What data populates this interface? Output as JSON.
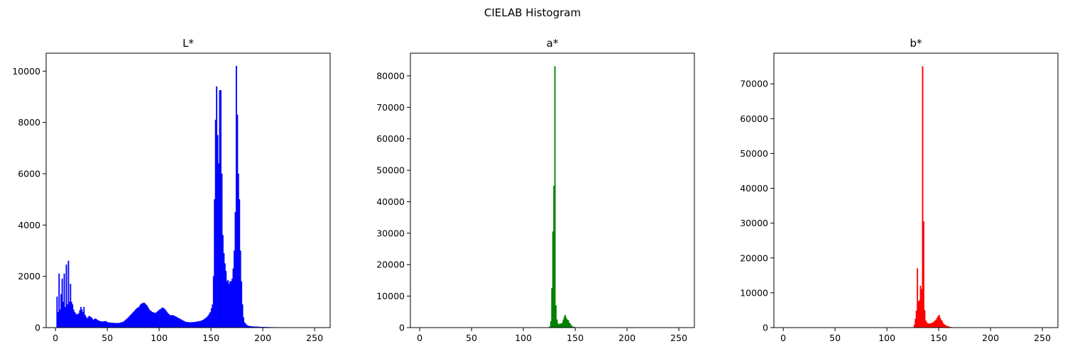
{
  "figure": {
    "suptitle": "CIELAB Histogram"
  },
  "chart_data": [
    {
      "type": "bar",
      "title": "L*",
      "color": "#0000ff",
      "xlim": [
        -9,
        265
      ],
      "ylim": [
        0,
        10700
      ],
      "xticks": [
        0,
        50,
        100,
        150,
        200,
        250
      ],
      "yticks": [
        0,
        2000,
        4000,
        6000,
        8000,
        10000
      ],
      "xlabel": "",
      "ylabel": "",
      "bins": 256,
      "anchors": [
        [
          0,
          0
        ],
        [
          1,
          1200
        ],
        [
          2,
          600
        ],
        [
          3,
          2100
        ],
        [
          4,
          700
        ],
        [
          5,
          1300
        ],
        [
          6,
          1900
        ],
        [
          7,
          1000
        ],
        [
          8,
          2100
        ],
        [
          9,
          800
        ],
        [
          10,
          2450
        ],
        [
          11,
          900
        ],
        [
          12,
          2600
        ],
        [
          13,
          1000
        ],
        [
          14,
          1700
        ],
        [
          15,
          1000
        ],
        [
          16,
          900
        ],
        [
          17,
          700
        ],
        [
          18,
          600
        ],
        [
          20,
          500
        ],
        [
          22,
          550
        ],
        [
          24,
          800
        ],
        [
          26,
          600
        ],
        [
          27,
          800
        ],
        [
          28,
          500
        ],
        [
          30,
          350
        ],
        [
          32,
          450
        ],
        [
          34,
          400
        ],
        [
          36,
          300
        ],
        [
          38,
          350
        ],
        [
          40,
          300
        ],
        [
          42,
          250
        ],
        [
          45,
          230
        ],
        [
          48,
          250
        ],
        [
          50,
          200
        ],
        [
          55,
          180
        ],
        [
          60,
          170
        ],
        [
          65,
          220
        ],
        [
          70,
          400
        ],
        [
          75,
          620
        ],
        [
          78,
          750
        ],
        [
          80,
          800
        ],
        [
          82,
          920
        ],
        [
          85,
          970
        ],
        [
          88,
          850
        ],
        [
          90,
          700
        ],
        [
          93,
          600
        ],
        [
          96,
          560
        ],
        [
          100,
          700
        ],
        [
          103,
          780
        ],
        [
          105,
          720
        ],
        [
          108,
          560
        ],
        [
          110,
          480
        ],
        [
          113,
          480
        ],
        [
          116,
          420
        ],
        [
          120,
          330
        ],
        [
          125,
          220
        ],
        [
          130,
          200
        ],
        [
          135,
          220
        ],
        [
          140,
          260
        ],
        [
          143,
          320
        ],
        [
          146,
          420
        ],
        [
          149,
          600
        ],
        [
          151,
          900
        ],
        [
          152,
          2000
        ],
        [
          153,
          5000
        ],
        [
          154,
          8100
        ],
        [
          155,
          9400
        ],
        [
          156,
          7500
        ],
        [
          157,
          6400
        ],
        [
          158,
          9250
        ],
        [
          159,
          9250
        ],
        [
          160,
          6000
        ],
        [
          161,
          3600
        ],
        [
          162,
          2900
        ],
        [
          163,
          2500
        ],
        [
          164,
          2200
        ],
        [
          165,
          1800
        ],
        [
          166,
          1850
        ],
        [
          167,
          1700
        ],
        [
          168,
          1800
        ],
        [
          169,
          1800
        ],
        [
          170,
          1900
        ],
        [
          171,
          2300
        ],
        [
          172,
          3000
        ],
        [
          173,
          4500
        ],
        [
          174,
          10200
        ],
        [
          175,
          8300
        ],
        [
          176,
          6000
        ],
        [
          177,
          5000
        ],
        [
          178,
          3000
        ],
        [
          179,
          1800
        ],
        [
          180,
          900
        ],
        [
          181,
          400
        ],
        [
          182,
          200
        ],
        [
          184,
          100
        ],
        [
          186,
          60
        ],
        [
          190,
          40
        ],
        [
          195,
          30
        ],
        [
          200,
          20
        ],
        [
          210,
          10
        ],
        [
          255,
          0
        ]
      ]
    },
    {
      "type": "bar",
      "title": "a*",
      "color": "#008000",
      "xlim": [
        -9,
        265
      ],
      "ylim": [
        0,
        87200
      ],
      "xticks": [
        0,
        50,
        100,
        150,
        200,
        250
      ],
      "yticks": [
        0,
        10000,
        20000,
        30000,
        40000,
        50000,
        60000,
        70000,
        80000
      ],
      "xlabel": "",
      "ylabel": "",
      "bins": 256,
      "anchors": [
        [
          0,
          0
        ],
        [
          124,
          0
        ],
        [
          125,
          300
        ],
        [
          126,
          2000
        ],
        [
          127,
          12500
        ],
        [
          128,
          30500
        ],
        [
          129,
          45000
        ],
        [
          130,
          83000
        ],
        [
          131,
          7000
        ],
        [
          132,
          2500
        ],
        [
          133,
          1300
        ],
        [
          134,
          1000
        ],
        [
          135,
          1300
        ],
        [
          136,
          1200
        ],
        [
          137,
          1500
        ],
        [
          138,
          2500
        ],
        [
          139,
          3500
        ],
        [
          140,
          4000
        ],
        [
          141,
          3000
        ],
        [
          142,
          2500
        ],
        [
          143,
          2300
        ],
        [
          144,
          1500
        ],
        [
          145,
          1200
        ],
        [
          146,
          600
        ],
        [
          147,
          300
        ],
        [
          149,
          100
        ],
        [
          152,
          0
        ],
        [
          255,
          0
        ]
      ]
    },
    {
      "type": "bar",
      "title": "b*",
      "color": "#ff0000",
      "xlim": [
        -9,
        265
      ],
      "ylim": [
        0,
        78800
      ],
      "xticks": [
        0,
        50,
        100,
        150,
        200,
        250
      ],
      "yticks": [
        0,
        10000,
        20000,
        30000,
        40000,
        50000,
        60000,
        70000
      ],
      "xlabel": "",
      "ylabel": "",
      "bins": 256,
      "anchors": [
        [
          0,
          0
        ],
        [
          125,
          0
        ],
        [
          126,
          800
        ],
        [
          127,
          2500
        ],
        [
          128,
          4800
        ],
        [
          129,
          17000
        ],
        [
          130,
          7500
        ],
        [
          131,
          7800
        ],
        [
          132,
          12000
        ],
        [
          133,
          11000
        ],
        [
          134,
          75000
        ],
        [
          135,
          30500
        ],
        [
          136,
          5000
        ],
        [
          137,
          2000
        ],
        [
          138,
          1500
        ],
        [
          139,
          1200
        ],
        [
          140,
          1100
        ],
        [
          141,
          1200
        ],
        [
          142,
          1200
        ],
        [
          143,
          1300
        ],
        [
          144,
          1500
        ],
        [
          145,
          1700
        ],
        [
          146,
          2000
        ],
        [
          147,
          2300
        ],
        [
          148,
          2800
        ],
        [
          149,
          3300
        ],
        [
          150,
          3600
        ],
        [
          151,
          2800
        ],
        [
          152,
          2200
        ],
        [
          153,
          1800
        ],
        [
          154,
          1200
        ],
        [
          155,
          900
        ],
        [
          156,
          700
        ],
        [
          157,
          500
        ],
        [
          158,
          400
        ],
        [
          159,
          300
        ],
        [
          160,
          200
        ],
        [
          162,
          100
        ],
        [
          165,
          0
        ],
        [
          255,
          0
        ]
      ]
    }
  ]
}
